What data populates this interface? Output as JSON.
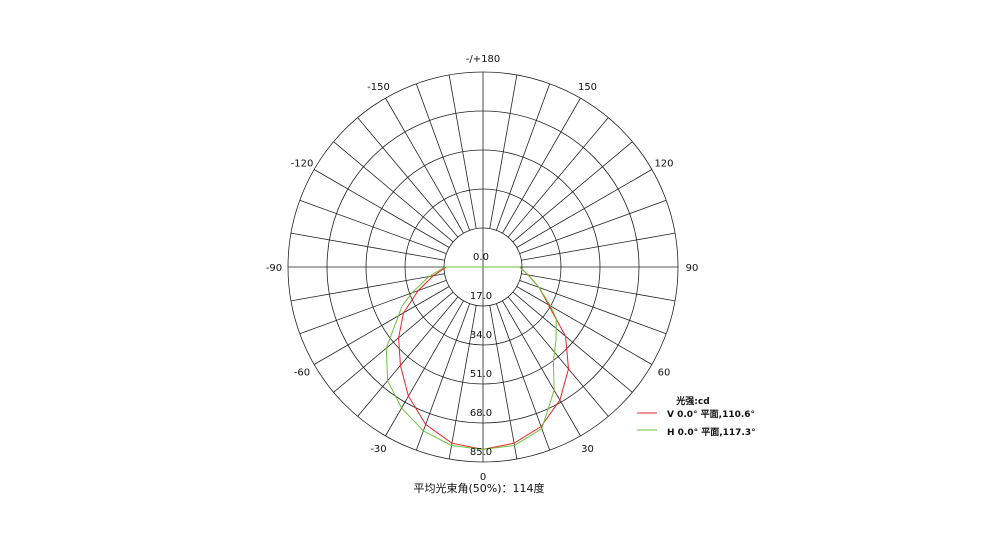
{
  "chart_data": {
    "type": "polar",
    "caption": "平均光束角(50%)：114度",
    "radial_ticks": [
      "0.0",
      "17.0",
      "34.0",
      "51.0",
      "68.0",
      "85.0"
    ],
    "radial_range": [
      0,
      85
    ],
    "angle_labels": [
      {
        "angle": 0,
        "label": "0"
      },
      {
        "angle": 30,
        "label": "30"
      },
      {
        "angle": 60,
        "label": "60"
      },
      {
        "angle": 90,
        "label": "90"
      },
      {
        "angle": 120,
        "label": "120"
      },
      {
        "angle": 150,
        "label": "150"
      },
      {
        "angle": 180,
        "label": "-/+180"
      },
      {
        "angle": -150,
        "label": "-150"
      },
      {
        "angle": -120,
        "label": "-120"
      },
      {
        "angle": -90,
        "label": "-90"
      },
      {
        "angle": -60,
        "label": "-60"
      },
      {
        "angle": -30,
        "label": "-30"
      }
    ],
    "spoke_step_deg": 10,
    "legend": {
      "title": "光强:cd",
      "placement": "bottom-right"
    },
    "series": [
      {
        "name": "V 0.0° 平面,110.6°",
        "color": "#e8232a",
        "points": [
          [
            -90,
            16
          ],
          [
            -80,
            22
          ],
          [
            -70,
            30
          ],
          [
            -60,
            40
          ],
          [
            -50,
            48
          ],
          [
            -40,
            56
          ],
          [
            -30,
            65
          ],
          [
            -20,
            73
          ],
          [
            -10,
            78
          ],
          [
            0,
            79.5
          ],
          [
            10,
            78
          ],
          [
            20,
            74
          ],
          [
            30,
            67
          ],
          [
            40,
            58
          ],
          [
            50,
            47
          ],
          [
            57,
            36
          ],
          [
            60,
            33
          ],
          [
            70,
            26
          ],
          [
            80,
            20
          ],
          [
            90,
            16
          ]
        ]
      },
      {
        "name": "H 0.0° 平面,117.3°",
        "color": "#6cc33a",
        "points": [
          [
            -90,
            16.6
          ],
          [
            -80,
            24
          ],
          [
            -70,
            33
          ],
          [
            -64,
            39.4
          ],
          [
            -50,
            55
          ],
          [
            -40,
            64.7
          ],
          [
            -30,
            71
          ],
          [
            -20,
            76
          ],
          [
            -10,
            79
          ],
          [
            0,
            79.5
          ],
          [
            10,
            79
          ],
          [
            20,
            75
          ],
          [
            30,
            62
          ],
          [
            37,
            51
          ],
          [
            45,
            45
          ],
          [
            55,
            39
          ],
          [
            60,
            34
          ],
          [
            70,
            26
          ],
          [
            80,
            20
          ],
          [
            90,
            16
          ]
        ]
      }
    ]
  }
}
